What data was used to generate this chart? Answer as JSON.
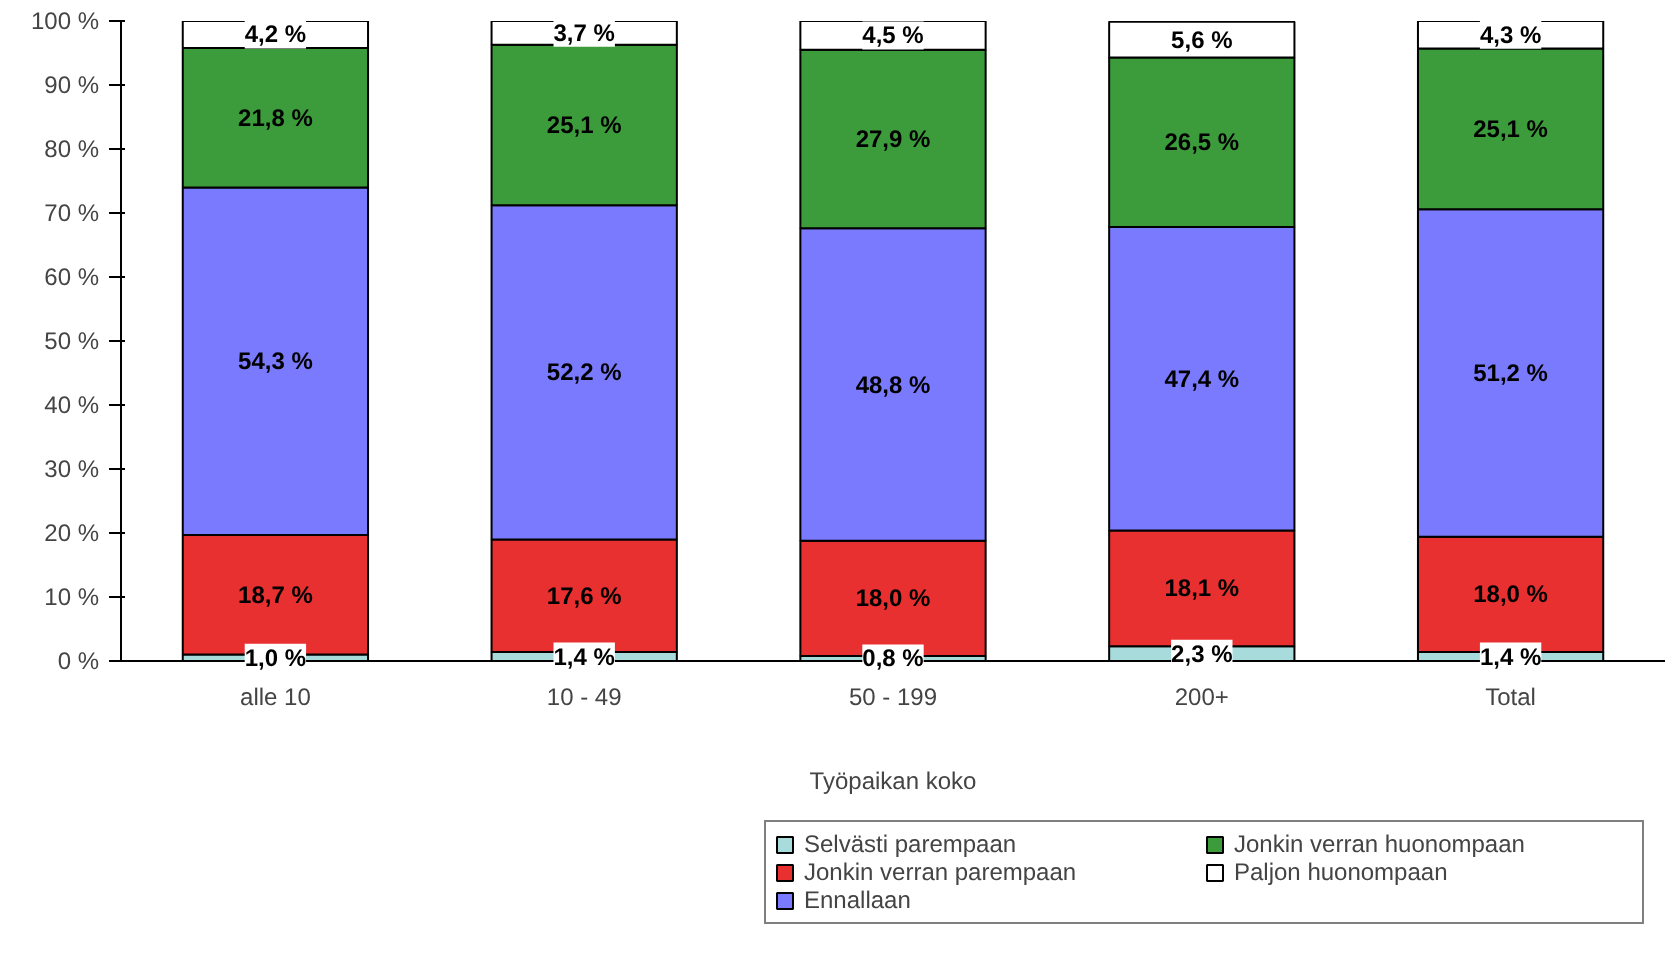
{
  "chart_data": {
    "type": "bar",
    "stacked": true,
    "xlabel": "Työpaikan koko",
    "categories": [
      "alle 10",
      "10 - 49",
      "50 - 199",
      "200+",
      "Total"
    ],
    "series": [
      {
        "name": "Selvästi parempaan",
        "color": "#a8dcdc",
        "values": [
          1.0,
          1.4,
          0.8,
          2.3,
          1.4
        ],
        "value_labels": [
          "1,0 %",
          "1,4 %",
          "0,8 %",
          "2,3 %",
          "1,4 %"
        ]
      },
      {
        "name": "Jonkin verran parempaan",
        "color": "#e83030",
        "values": [
          18.7,
          17.6,
          18.0,
          18.1,
          18.0
        ],
        "value_labels": [
          "18,7 %",
          "17,6 %",
          "18,0 %",
          "18,1 %",
          "18,0 %"
        ]
      },
      {
        "name": "Ennallaan",
        "color": "#7a7aff",
        "values": [
          54.3,
          52.2,
          48.8,
          47.4,
          51.2
        ],
        "value_labels": [
          "54,3 %",
          "52,2 %",
          "48,8 %",
          "47,4 %",
          "51,2 %"
        ]
      },
      {
        "name": "Jonkin verran huonompaan",
        "color": "#3c9c3c",
        "values": [
          21.8,
          25.1,
          27.9,
          26.5,
          25.1
        ],
        "value_labels": [
          "21,8 %",
          "25,1 %",
          "27,9 %",
          "26,5 %",
          "25,1 %"
        ]
      },
      {
        "name": "Paljon huonompaan",
        "color": "#ffffff",
        "values": [
          4.2,
          3.7,
          4.5,
          5.6,
          4.3
        ],
        "value_labels": [
          "4,2 %",
          "3,7 %",
          "4,5 %",
          "5,6 %",
          "4,3 %"
        ]
      }
    ],
    "ylim": [
      0,
      100
    ],
    "yticks": [
      {
        "value": 0,
        "label": "0 %"
      },
      {
        "value": 10,
        "label": "10 %"
      },
      {
        "value": 20,
        "label": "20 %"
      },
      {
        "value": 30,
        "label": "30 %"
      },
      {
        "value": 40,
        "label": "40 %"
      },
      {
        "value": 50,
        "label": "50 %"
      },
      {
        "value": 60,
        "label": "60 %"
      },
      {
        "value": 70,
        "label": "70 %"
      },
      {
        "value": 80,
        "label": "80 %"
      },
      {
        "value": 90,
        "label": "90 %"
      },
      {
        "value": 100,
        "label": "100 %"
      }
    ],
    "grid": false,
    "legend": "bottom right"
  }
}
